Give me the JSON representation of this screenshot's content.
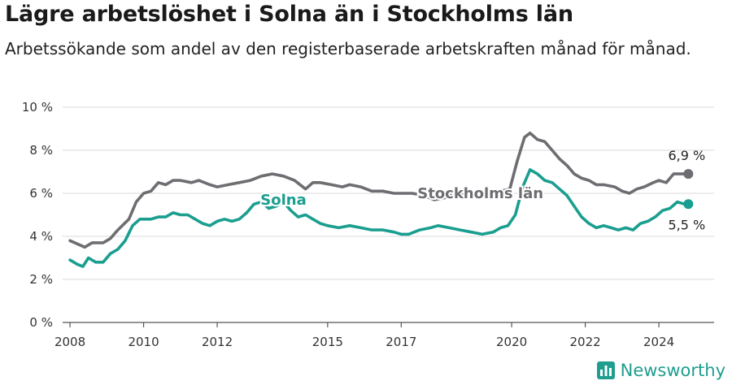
{
  "title": "Lägre arbetslöshet i Solna än i Stockholms län",
  "subtitle": "Arbetssökande som andel av den registerbaserade arbetskraften månad för månad.",
  "brand": {
    "name": "Newsworthy",
    "icon": "bar-chart-logo-icon"
  },
  "colors": {
    "solna": "#1a9e8f",
    "stockholm": "#6d6d72",
    "grid": "#d9d9d9",
    "axis": "#555555"
  },
  "chart_data": {
    "type": "line",
    "title": "Lägre arbetslöshet i Solna än i Stockholms län",
    "xlabel": "",
    "ylabel": "",
    "xlim": [
      2007.8,
      2025.5
    ],
    "ylim": [
      0,
      10
    ],
    "x_ticks": [
      2008,
      2010,
      2012,
      2015,
      2017,
      2020,
      2022,
      2024
    ],
    "x_tick_labels": [
      "2008",
      "2010",
      "2012",
      "2015",
      "2017",
      "2020",
      "2022",
      "2024"
    ],
    "y_ticks": [
      0,
      2,
      4,
      6,
      8,
      10
    ],
    "y_tick_labels": [
      "0 %",
      "2 %",
      "4 %",
      "6 %",
      "8 %",
      "10 %"
    ],
    "series": [
      {
        "name": "Stockholms län",
        "label": "Stockholms län",
        "color": "#6d6d72",
        "end_label": "6,9 %",
        "points": [
          [
            2008.0,
            3.8
          ],
          [
            2008.4,
            3.5
          ],
          [
            2008.6,
            3.7
          ],
          [
            2008.9,
            3.7
          ],
          [
            2009.1,
            3.9
          ],
          [
            2009.3,
            4.3
          ],
          [
            2009.6,
            4.8
          ],
          [
            2009.8,
            5.6
          ],
          [
            2010.0,
            6.0
          ],
          [
            2010.2,
            6.1
          ],
          [
            2010.4,
            6.5
          ],
          [
            2010.6,
            6.4
          ],
          [
            2010.8,
            6.6
          ],
          [
            2011.0,
            6.6
          ],
          [
            2011.3,
            6.5
          ],
          [
            2011.5,
            6.6
          ],
          [
            2011.8,
            6.4
          ],
          [
            2012.0,
            6.3
          ],
          [
            2012.3,
            6.4
          ],
          [
            2012.6,
            6.5
          ],
          [
            2012.9,
            6.6
          ],
          [
            2013.2,
            6.8
          ],
          [
            2013.5,
            6.9
          ],
          [
            2013.8,
            6.8
          ],
          [
            2014.1,
            6.6
          ],
          [
            2014.4,
            6.2
          ],
          [
            2014.6,
            6.5
          ],
          [
            2014.8,
            6.5
          ],
          [
            2015.1,
            6.4
          ],
          [
            2015.4,
            6.3
          ],
          [
            2015.6,
            6.4
          ],
          [
            2015.9,
            6.3
          ],
          [
            2016.2,
            6.1
          ],
          [
            2016.5,
            6.1
          ],
          [
            2016.8,
            6.0
          ],
          [
            2017.1,
            6.0
          ],
          [
            2017.3,
            6.0
          ],
          [
            2017.6,
            5.9
          ],
          [
            2017.9,
            5.7
          ],
          [
            2018.2,
            5.8
          ],
          [
            2018.5,
            6.0
          ],
          [
            2018.8,
            5.9
          ],
          [
            2019.1,
            5.8
          ],
          [
            2019.4,
            5.9
          ],
          [
            2019.7,
            6.1
          ],
          [
            2019.95,
            6.2
          ],
          [
            2020.15,
            7.5
          ],
          [
            2020.35,
            8.6
          ],
          [
            2020.5,
            8.8
          ],
          [
            2020.7,
            8.5
          ],
          [
            2020.9,
            8.4
          ],
          [
            2021.1,
            8.0
          ],
          [
            2021.3,
            7.6
          ],
          [
            2021.5,
            7.3
          ],
          [
            2021.7,
            6.9
          ],
          [
            2021.9,
            6.7
          ],
          [
            2022.1,
            6.6
          ],
          [
            2022.3,
            6.4
          ],
          [
            2022.5,
            6.4
          ],
          [
            2022.8,
            6.3
          ],
          [
            2023.0,
            6.1
          ],
          [
            2023.2,
            6.0
          ],
          [
            2023.4,
            6.2
          ],
          [
            2023.6,
            6.3
          ],
          [
            2023.85,
            6.5
          ],
          [
            2024.0,
            6.6
          ],
          [
            2024.2,
            6.5
          ],
          [
            2024.4,
            6.9
          ],
          [
            2024.6,
            6.9
          ],
          [
            2024.8,
            6.9
          ]
        ]
      },
      {
        "name": "Solna",
        "label": "Solna",
        "color": "#1a9e8f",
        "end_label": "5,5 %",
        "points": [
          [
            2008.0,
            2.9
          ],
          [
            2008.2,
            2.7
          ],
          [
            2008.35,
            2.6
          ],
          [
            2008.5,
            3.0
          ],
          [
            2008.7,
            2.8
          ],
          [
            2008.9,
            2.8
          ],
          [
            2009.1,
            3.2
          ],
          [
            2009.3,
            3.4
          ],
          [
            2009.5,
            3.8
          ],
          [
            2009.7,
            4.5
          ],
          [
            2009.9,
            4.8
          ],
          [
            2010.2,
            4.8
          ],
          [
            2010.4,
            4.9
          ],
          [
            2010.6,
            4.9
          ],
          [
            2010.8,
            5.1
          ],
          [
            2011.0,
            5.0
          ],
          [
            2011.2,
            5.0
          ],
          [
            2011.4,
            4.8
          ],
          [
            2011.6,
            4.6
          ],
          [
            2011.8,
            4.5
          ],
          [
            2012.0,
            4.7
          ],
          [
            2012.2,
            4.8
          ],
          [
            2012.4,
            4.7
          ],
          [
            2012.6,
            4.8
          ],
          [
            2012.8,
            5.1
          ],
          [
            2013.0,
            5.5
          ],
          [
            2013.2,
            5.6
          ],
          [
            2013.4,
            5.3
          ],
          [
            2013.6,
            5.4
          ],
          [
            2013.8,
            5.6
          ],
          [
            2014.0,
            5.2
          ],
          [
            2014.2,
            4.9
          ],
          [
            2014.4,
            5.0
          ],
          [
            2014.6,
            4.8
          ],
          [
            2014.8,
            4.6
          ],
          [
            2015.0,
            4.5
          ],
          [
            2015.3,
            4.4
          ],
          [
            2015.6,
            4.5
          ],
          [
            2015.9,
            4.4
          ],
          [
            2016.2,
            4.3
          ],
          [
            2016.5,
            4.3
          ],
          [
            2016.8,
            4.2
          ],
          [
            2017.0,
            4.1
          ],
          [
            2017.2,
            4.1
          ],
          [
            2017.5,
            4.3
          ],
          [
            2017.8,
            4.4
          ],
          [
            2018.0,
            4.5
          ],
          [
            2018.3,
            4.4
          ],
          [
            2018.6,
            4.3
          ],
          [
            2018.9,
            4.2
          ],
          [
            2019.2,
            4.1
          ],
          [
            2019.5,
            4.2
          ],
          [
            2019.7,
            4.4
          ],
          [
            2019.9,
            4.5
          ],
          [
            2020.1,
            5.0
          ],
          [
            2020.3,
            6.3
          ],
          [
            2020.5,
            7.1
          ],
          [
            2020.7,
            6.9
          ],
          [
            2020.9,
            6.6
          ],
          [
            2021.1,
            6.5
          ],
          [
            2021.3,
            6.2
          ],
          [
            2021.5,
            5.9
          ],
          [
            2021.7,
            5.4
          ],
          [
            2021.9,
            4.9
          ],
          [
            2022.1,
            4.6
          ],
          [
            2022.3,
            4.4
          ],
          [
            2022.5,
            4.5
          ],
          [
            2022.7,
            4.4
          ],
          [
            2022.9,
            4.3
          ],
          [
            2023.1,
            4.4
          ],
          [
            2023.3,
            4.3
          ],
          [
            2023.5,
            4.6
          ],
          [
            2023.7,
            4.7
          ],
          [
            2023.9,
            4.9
          ],
          [
            2024.1,
            5.2
          ],
          [
            2024.3,
            5.3
          ],
          [
            2024.5,
            5.6
          ],
          [
            2024.7,
            5.5
          ],
          [
            2024.8,
            5.5
          ]
        ]
      }
    ]
  }
}
